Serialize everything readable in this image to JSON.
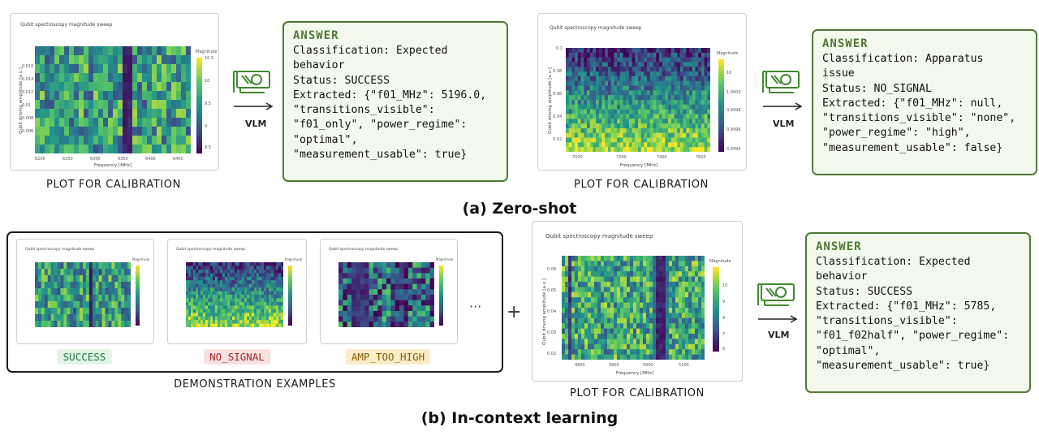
{
  "zero_shot": {
    "title": "(a) Zero-shot",
    "panels": [
      {
        "plot_title": "Qubit spectroscopy magnitude sweep",
        "xlabel": "Frequency [MHz]",
        "ylabel": "Qubit driving amplitude [a.u.]",
        "xticks": [
          "6200",
          "6250",
          "6300",
          "6350",
          "6400",
          "6450"
        ],
        "yticks": [
          "0.016",
          "0.014",
          "0.012",
          "0.01",
          "0.008",
          "0.006"
        ],
        "colorbar_label": "Magnitude",
        "colorbar_ticks": [
          "10.5",
          "10",
          "9.5",
          "9",
          "8.5"
        ],
        "caption": "PLOT FOR CALIBRATION",
        "vlm_label": "VLM",
        "answer": {
          "heading": "ANSWER",
          "lines": [
            "Classification: Expected",
            "behavior",
            "Status: SUCCESS",
            "Extracted: {\"f01_MHz\": 5196.0,",
            "\"transitions_visible\":",
            "\"f01_only\", \"power_regime\":",
            "\"optimal\",",
            "\"measurement_usable\": true}"
          ]
        }
      },
      {
        "plot_title": "Qubit spectroscopy magnitude sweep",
        "xlabel": "Frequency [MHz]",
        "ylabel": "Qubit driving amplitude [a.u.]",
        "xticks": [
          "7000",
          "7200",
          "7400",
          "7600"
        ],
        "yticks": [
          "0.1",
          "0.08",
          "0.06",
          "0.04",
          "0.02"
        ],
        "colorbar_label": "Magnitude",
        "colorbar_ticks": [
          "10",
          "1.0000",
          "0.9998",
          "0.9996",
          "0.9994"
        ],
        "caption": "PLOT FOR CALIBRATION",
        "vlm_label": "VLM",
        "answer": {
          "heading": "ANSWER",
          "lines": [
            "Classification: Apparatus",
            "issue",
            "Status: NO_SIGNAL",
            "Extracted: {\"f01_MHz\": null,",
            "\"transitions_visible\": \"none\",",
            "\"power_regime\": \"high\",",
            "\"measurement_usable\": false}"
          ]
        }
      }
    ]
  },
  "in_context": {
    "title": "(b) In-context learning",
    "demo_caption": "DEMONSTRATION EXAMPLES",
    "demos": [
      {
        "plot_title": "Qubit spectroscopy magnitude sweep",
        "colorbar_label": "Magnitude",
        "status": "SUCCESS",
        "badge_bg": "#e3f3e7",
        "badge_fg": "#1f7a3c"
      },
      {
        "plot_title": "Qubit spectroscopy magnitude sweep",
        "colorbar_label": "Magnitude",
        "status": "NO_SIGNAL",
        "badge_bg": "#f8e1e1",
        "badge_fg": "#a32a2a"
      },
      {
        "plot_title": "Qubit spectroscopy magnitude sweep",
        "colorbar_label": "Magnitude",
        "status": "AMP_TOO_HIGH",
        "badge_bg": "#fbecc8",
        "badge_fg": "#8a5a00"
      }
    ],
    "ellipsis": "···",
    "plus": "+",
    "main_plot": {
      "plot_title": "Qubit spectroscopy magnitude sweep",
      "xlabel": "Frequency [MHz]",
      "ylabel": "Qubit driving amplitude [a.u.]",
      "xticks": [
        "4800",
        "4900",
        "5000",
        "5100"
      ],
      "yticks": [
        "0.06",
        "0.05",
        "0.04",
        "0.03",
        "0.02"
      ],
      "colorbar_label": "Magnitude",
      "colorbar_ticks": [
        "10",
        "9",
        "8",
        "7",
        "6"
      ],
      "caption": "PLOT FOR CALIBRATION"
    },
    "vlm_label": "VLM",
    "answer": {
      "heading": "ANSWER",
      "lines": [
        "Classification: Expected",
        "behavior",
        "Status: SUCCESS",
        "Extracted: {\"f01_MHz\": 5785,",
        "\"transitions_visible\":",
        "\"f01_f02half\", \"power_regime\":",
        "\"optimal\",",
        "\"measurement_usable\": true}"
      ]
    }
  },
  "colors": {
    "answer_border": "#4f7a33",
    "answer_bg": "#f4f9ee",
    "vlm_icon": "#3f8a2f"
  }
}
